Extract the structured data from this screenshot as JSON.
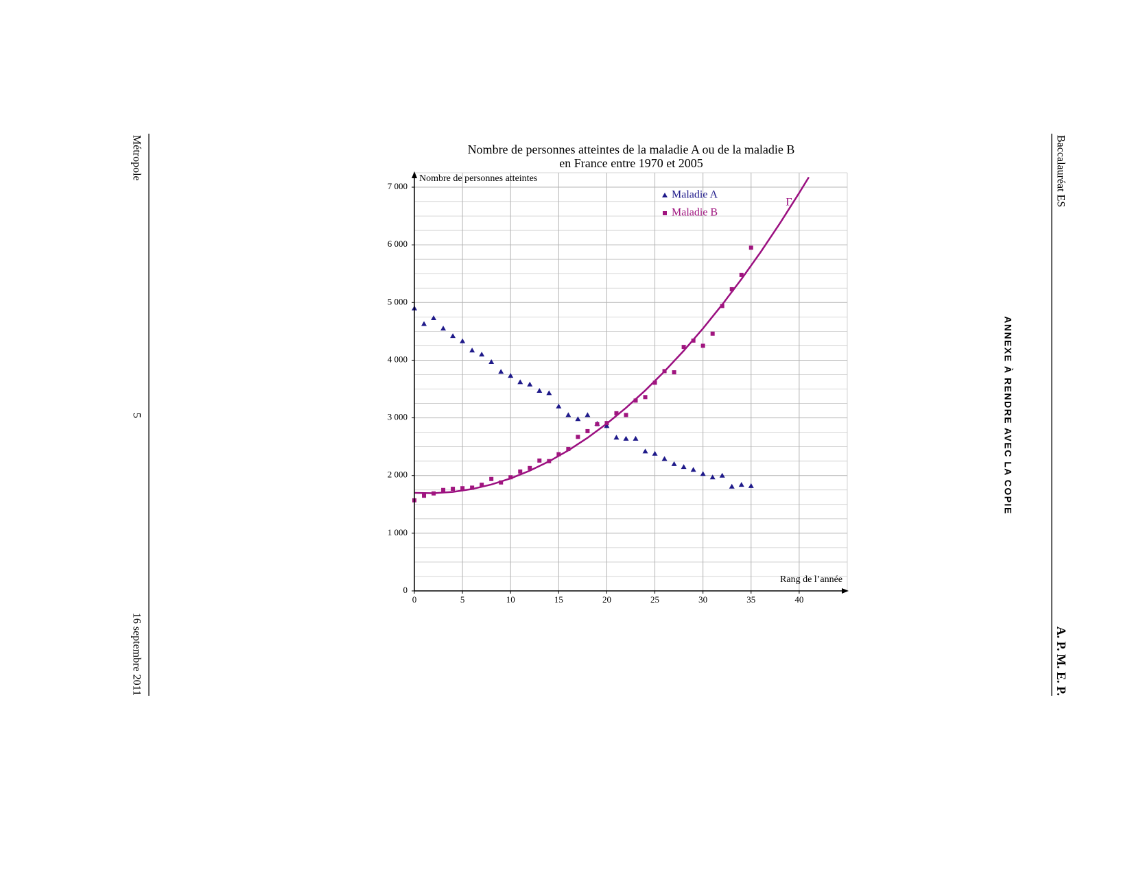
{
  "page": {
    "left_top": "Métropole",
    "left_middle": "5",
    "left_bottom": "16 septembre 2011",
    "right_top": "Baccalauréat ES",
    "right_bottom": "A. P. M. E. P.",
    "annex": "ANNEXE À RENDRE AVEC LA COPIE"
  },
  "chart_data": {
    "type": "scatter",
    "title": "Nombre de personnes atteintes de la maladie A ou de la maladie B",
    "subtitle": "en France entre 1970 et 2005",
    "y_label": "Nombre de personnes atteintes",
    "x_label": "Rang de l’année",
    "xlim": [
      0,
      45
    ],
    "ylim": [
      0,
      7250
    ],
    "xticks": [
      0,
      5,
      10,
      15,
      20,
      25,
      30,
      35,
      40
    ],
    "yticks": [
      0,
      {
        "value": 1000,
        "label": "1 000"
      },
      {
        "value": 2000,
        "label": "2 000"
      },
      {
        "value": 3000,
        "label": "3 000"
      },
      {
        "value": 4000,
        "label": "4 000"
      },
      {
        "value": 5000,
        "label": "5 000"
      },
      {
        "value": 6000,
        "label": "6 000"
      },
      {
        "value": 7000,
        "label": "7 000"
      }
    ],
    "ygrid": [
      250,
      500,
      750,
      1250,
      1500,
      1750,
      2250,
      2500,
      2750,
      3250,
      3500,
      3750,
      4250,
      4500,
      4750,
      5250,
      5500,
      5750,
      6250,
      6500,
      6750,
      7250
    ],
    "grid": true,
    "x": [
      0,
      1,
      2,
      3,
      4,
      5,
      6,
      7,
      8,
      9,
      10,
      11,
      12,
      13,
      14,
      15,
      16,
      17,
      18,
      19,
      20,
      21,
      22,
      23,
      24,
      25,
      26,
      27,
      28,
      29,
      30,
      31,
      32,
      33,
      34,
      35
    ],
    "series": [
      {
        "name": "Maladie A",
        "color": "#1f1a8a",
        "marker": "triangle",
        "values": [
          4900,
          4630,
          4730,
          4550,
          4420,
          4330,
          4170,
          4100,
          3970,
          3800,
          3730,
          3620,
          3580,
          3470,
          3430,
          3200,
          3050,
          2980,
          3050,
          2900,
          2860,
          2660,
          2640,
          2640,
          2420,
          2380,
          2290,
          2200,
          2150,
          2100,
          2030,
          1970,
          2000,
          1810,
          1840,
          1820
        ]
      },
      {
        "name": "Maladie B",
        "color": "#a0157f",
        "marker": "square",
        "values": [
          1570,
          1650,
          1690,
          1750,
          1770,
          1780,
          1790,
          1840,
          1940,
          1880,
          1970,
          2070,
          2130,
          2260,
          2250,
          2370,
          2460,
          2670,
          2770,
          2890,
          2910,
          3080,
          3050,
          3300,
          3360,
          3610,
          3810,
          3790,
          4230,
          4340,
          4250,
          4460,
          4940,
          5230,
          5480,
          5950
        ]
      }
    ],
    "curve": {
      "label": "Γ",
      "color": "#9b0f80",
      "x": [
        0,
        2,
        4,
        6,
        8,
        10,
        12,
        14,
        16,
        18,
        20,
        22,
        24,
        26,
        28,
        30,
        32,
        34,
        36,
        38,
        40,
        41
      ],
      "values": [
        1700,
        1694,
        1716,
        1766,
        1844,
        1950,
        2084,
        2246,
        2436,
        2654,
        2900,
        3174,
        3476,
        3806,
        4164,
        4550,
        4964,
        5406,
        5876,
        6374,
        6900,
        7173
      ]
    }
  }
}
